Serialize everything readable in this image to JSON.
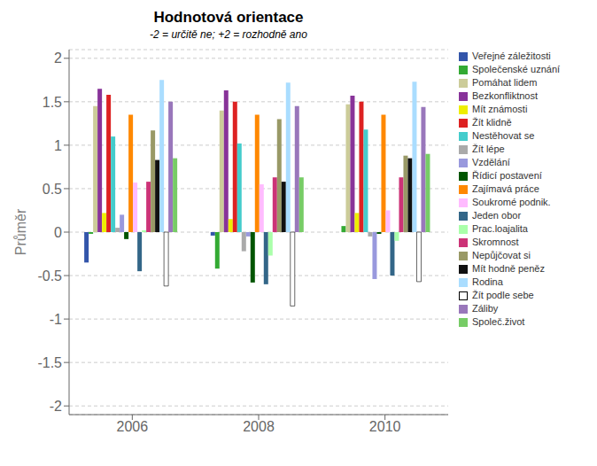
{
  "chart_data": {
    "type": "bar",
    "title": "Hodnotová orientace",
    "subtitle": "-2 = určitě ne; +2 = rozhodně ano",
    "ylabel": "Průměr",
    "categories": [
      "2006",
      "2008",
      "2010"
    ],
    "ylim": [
      -2.1,
      2.1
    ],
    "yticks": [
      -2,
      -1.5,
      -1,
      -0.5,
      0,
      0.5,
      1,
      1.5,
      2
    ],
    "grid": true,
    "legend": "right",
    "series": [
      {
        "name": "Veřejné záležitosti",
        "color": "#3355aa",
        "values": [
          -0.35,
          -0.04,
          0.0
        ]
      },
      {
        "name": "Společenské uznání",
        "color": "#33aa33",
        "values": [
          -0.02,
          -0.42,
          0.07
        ]
      },
      {
        "name": "Pomáhat lidem",
        "color": "#cccc99",
        "values": [
          1.45,
          1.4,
          1.47
        ]
      },
      {
        "name": "Bezkonfliktnost",
        "color": "#883399",
        "values": [
          1.65,
          1.63,
          1.57
        ]
      },
      {
        "name": "Mít známosti",
        "color": "#eeee00",
        "values": [
          0.22,
          0.15,
          0.22
        ]
      },
      {
        "name": "Žít klidně",
        "color": "#dd2222",
        "values": [
          1.58,
          1.5,
          1.5
        ]
      },
      {
        "name": "Nestěhovat se",
        "color": "#44cccc",
        "values": [
          1.1,
          1.02,
          1.18
        ]
      },
      {
        "name": "Žít lépe",
        "color": "#aaaaaa",
        "values": [
          0.05,
          -0.22,
          -0.05
        ]
      },
      {
        "name": "Vzdělání",
        "color": "#9999dd",
        "values": [
          0.2,
          -0.05,
          -0.54
        ]
      },
      {
        "name": "Řídicí postavení",
        "color": "#005500",
        "values": [
          -0.08,
          -0.58,
          -0.02
        ]
      },
      {
        "name": "Zajímavá práce",
        "color": "#ff8800",
        "values": [
          1.35,
          1.35,
          1.35
        ]
      },
      {
        "name": "Soukromé podnik.",
        "color": "#ffbbff",
        "values": [
          0.57,
          0.55,
          0.25
        ]
      },
      {
        "name": "Jeden obor",
        "color": "#336688",
        "values": [
          -0.45,
          -0.6,
          -0.5
        ]
      },
      {
        "name": "Prac.loajalita",
        "color": "#aaffaa",
        "values": [
          0.02,
          -0.27,
          -0.1
        ]
      },
      {
        "name": "Skromnost",
        "color": "#cc3377",
        "values": [
          0.58,
          0.63,
          0.63
        ]
      },
      {
        "name": "Nepůjčovat si",
        "color": "#999966",
        "values": [
          1.17,
          1.3,
          0.88
        ]
      },
      {
        "name": "Mít hodně peněz",
        "color": "#111111",
        "values": [
          0.83,
          0.58,
          0.85
        ]
      },
      {
        "name": "Rodina",
        "color": "#aaddff",
        "values": [
          1.75,
          1.72,
          1.73
        ]
      },
      {
        "name": "Žít podle sebe",
        "color": "#ffffff",
        "values": [
          -0.62,
          -0.85,
          -0.57
        ]
      },
      {
        "name": "Záliby",
        "color": "#9977bb",
        "values": [
          1.5,
          1.45,
          1.44
        ]
      },
      {
        "name": "Společ.život",
        "color": "#77cc66",
        "values": [
          0.85,
          0.63,
          0.9
        ]
      }
    ]
  }
}
